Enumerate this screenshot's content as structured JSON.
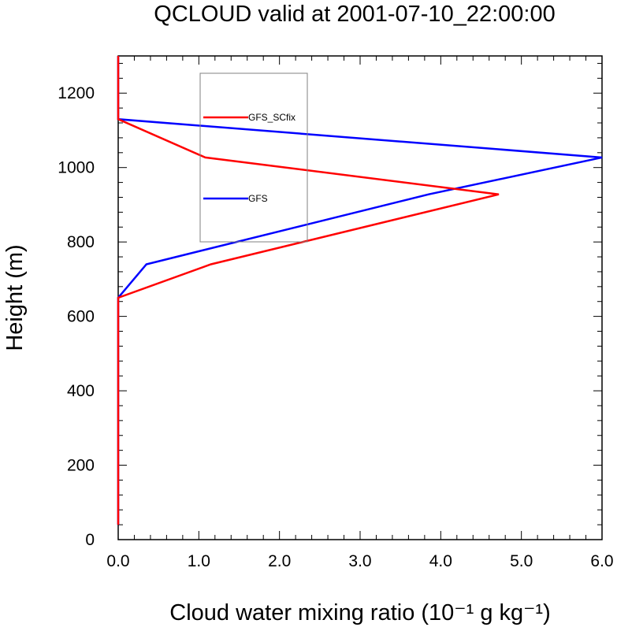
{
  "chart_data": {
    "type": "line",
    "title": "QCLOUD valid at 2001-07-10_22:00:00",
    "xlabel": "Cloud water mixing ratio (10⁻¹ g kg⁻¹)",
    "ylabel": "Height (m)",
    "xlim": [
      0,
      6
    ],
    "ylim": [
      0,
      1300
    ],
    "xticks": [
      0,
      1,
      2,
      3,
      4,
      5,
      6
    ],
    "xtick_labels": [
      "0.0",
      "1.0",
      "2.0",
      "3.0",
      "4.0",
      "5.0",
      "6.0"
    ],
    "yticks": [
      0,
      200,
      400,
      600,
      800,
      1000,
      1200
    ],
    "ytick_labels": [
      "0",
      "200",
      "400",
      "600",
      "800",
      "1000",
      "1200"
    ],
    "grid": false,
    "legend_position": "top-center",
    "series": [
      {
        "name": "GFS_SCfix",
        "color": "#ff0000",
        "points": [
          [
            0,
            40
          ],
          [
            0,
            650
          ],
          [
            1.15,
            740
          ],
          [
            4.72,
            928
          ],
          [
            1.08,
            1027
          ],
          [
            0,
            1130
          ],
          [
            0,
            1300
          ]
        ]
      },
      {
        "name": "GFS",
        "color": "#0000ff",
        "points": [
          [
            0,
            40
          ],
          [
            0,
            650
          ],
          [
            0.35,
            740
          ],
          [
            3.85,
            928
          ],
          [
            6.0,
            1027
          ],
          [
            0,
            1130
          ],
          [
            0,
            1300
          ]
        ]
      }
    ]
  }
}
